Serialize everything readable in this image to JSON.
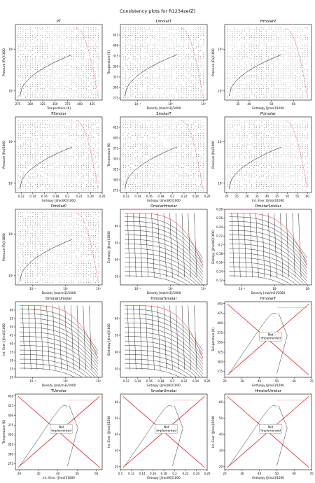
{
  "figure": {
    "title": "Consistency plots for R1234ze(Z)"
  },
  "colors": {
    "curve": "#000000",
    "red": "#e41a1c",
    "grid": "#bbbbbb"
  },
  "chart_data": [
    {
      "id": "PT",
      "title": "PT",
      "type": "scatter",
      "xlabel": "Temperature [K]",
      "ylabel": "Pressure [Pa]/1000",
      "xlim": [
        270,
        445
      ],
      "ylog": true,
      "ylim": [
        60,
        4000
      ],
      "xticks": [
        275,
        300,
        325,
        350,
        375,
        400,
        425
      ],
      "yticks": [
        100,
        1000
      ],
      "yticklabels": [
        "10²",
        "10³"
      ],
      "grid": "dots",
      "implemented": true
    },
    {
      "id": "DmolarT",
      "title": "DmolarT",
      "type": "scatter",
      "xlabel": "Density [mol/m3]/1000",
      "ylabel": "Temperature [K]",
      "xlog": true,
      "xlim": [
        0.03,
        13
      ],
      "ylim": [
        270,
        450
      ],
      "xticks": [
        0.1,
        1,
        10
      ],
      "xticklabels": [
        "10⁻¹",
        "10⁰",
        "10¹"
      ],
      "yticks": [
        275,
        300,
        325,
        350,
        375,
        400,
        425
      ],
      "grid": "dots",
      "implemented": true
    },
    {
      "id": "HmolarP",
      "title": "HmolarP",
      "type": "scatter",
      "xlabel": "Enthalpy [J/mol]/1000",
      "ylabel": "Pressure [Pa]/1000",
      "xlim": [
        29,
        68
      ],
      "ylog": true,
      "ylim": [
        60,
        4000
      ],
      "xticks": [
        35,
        40,
        50,
        60
      ],
      "yticks": [
        100,
        1000
      ],
      "yticklabels": [
        "10²",
        "10³"
      ],
      "grid": "dots",
      "implemented": true
    },
    {
      "id": "PSmolar",
      "title": "PSmolar",
      "type": "scatter",
      "xlabel": "Entropy [J/mol/K]/1000",
      "ylabel": "Pressure [Pa]/1000",
      "xlim": [
        0.11,
        0.26
      ],
      "ylog": true,
      "ylim": [
        60,
        4000
      ],
      "xticks": [
        0.12,
        0.14,
        0.16,
        0.18,
        0.2,
        0.22,
        0.24,
        0.26
      ],
      "yticks": [
        100,
        1000
      ],
      "yticklabels": [
        "10²",
        "10³"
      ],
      "grid": "dots",
      "implemented": true
    },
    {
      "id": "SmolarT",
      "title": "SmolarT",
      "type": "scatter",
      "xlabel": "Entropy [J/mol/K]/1000",
      "ylabel": "Temperature [K]",
      "xlim": [
        0.11,
        0.26
      ],
      "ylim": [
        270,
        450
      ],
      "xticks": [
        0.12,
        0.14,
        0.16,
        0.18,
        0.2,
        0.22,
        0.24,
        0.26
      ],
      "yticks": [
        275,
        300,
        325,
        350,
        375,
        400,
        425
      ],
      "grid": "dots",
      "implemented": true
    },
    {
      "id": "PUmolar",
      "title": "PUmolar",
      "type": "scatter",
      "xlabel": "Int. Ener. [J/mol]/1000",
      "ylabel": "Pressure [Pa]/1000",
      "xlim": [
        19,
        62
      ],
      "ylog": true,
      "ylim": [
        60,
        4000
      ],
      "xticks": [
        20,
        25,
        30,
        35,
        40,
        45,
        50,
        55,
        60
      ],
      "yticks": [
        100,
        1000
      ],
      "yticklabels": [
        "10²",
        "10³"
      ],
      "grid": "dots",
      "implemented": true
    },
    {
      "id": "DmolarP",
      "title": "DmolarP",
      "type": "scatter",
      "xlabel": "Density [mol/m3]/1000",
      "ylabel": "Pressure [Pa]/1000",
      "xlog": true,
      "xlim": [
        0.03,
        13
      ],
      "ylog": true,
      "ylim": [
        60,
        4000
      ],
      "xticks": [
        0.1,
        1,
        10
      ],
      "xticklabels": [
        "10⁻¹",
        "10⁰",
        "10¹"
      ],
      "yticks": [
        100,
        1000
      ],
      "yticklabels": [
        "10²",
        "10³"
      ],
      "grid": "dots",
      "implemented": true
    },
    {
      "id": "DmolarHmolar",
      "title": "DmolarHmolar",
      "type": "scatter",
      "xlabel": "Density [mol/m3]/1000",
      "ylabel": "Enthalpy [J/mol]/1000",
      "xlog": true,
      "xlim": [
        0.03,
        13
      ],
      "ylim": [
        25,
        70
      ],
      "xticks": [
        0.1,
        1,
        10
      ],
      "xticklabels": [
        "10⁻¹",
        "10⁰",
        "10¹"
      ],
      "yticks": [
        30,
        40,
        50,
        60
      ],
      "grid": "lines",
      "implemented": true
    },
    {
      "id": "DmolarSmolar",
      "title": "DmolarSmolar",
      "type": "scatter",
      "xlabel": "Density [mol/m3]/1000",
      "ylabel": "Entropy [J/mol/K]/1000",
      "xlog": true,
      "xlim": [
        0.03,
        13
      ],
      "ylim": [
        0.11,
        0.28
      ],
      "xticks": [
        0.1,
        1,
        10
      ],
      "xticklabels": [
        "10⁻¹",
        "10⁰",
        "10¹"
      ],
      "yticks": [
        0.12,
        0.14,
        0.16,
        0.18,
        0.2,
        0.22,
        0.24,
        0.26,
        0.28
      ],
      "grid": "lines",
      "implemented": true
    },
    {
      "id": "DmolarUmolar",
      "title": "DmolarUmolar",
      "type": "scatter",
      "xlabel": "Density [mol/m3]/1000",
      "ylabel": "Int. Ener. [J/mol]/1000",
      "xlog": true,
      "xlim": [
        0.03,
        13
      ],
      "ylim": [
        20,
        65
      ],
      "xticks": [
        0.1,
        1,
        10
      ],
      "xticklabels": [
        "10⁻¹",
        "10⁰",
        "10¹"
      ],
      "yticks": [
        20,
        25,
        30,
        35,
        40,
        45,
        50,
        55,
        60
      ],
      "grid": "lines",
      "implemented": true
    },
    {
      "id": "HmolarSmolar",
      "title": "HmolarSmolar",
      "type": "scatter",
      "xlabel": "Entropy [J/mol/K]/1000",
      "ylabel": "Enthalpy [J/mol]/1000",
      "xlim": [
        0.11,
        0.26
      ],
      "ylim": [
        25,
        70
      ],
      "xticks": [
        0.12,
        0.14,
        0.16,
        0.18,
        0.2,
        0.22,
        0.24,
        0.26
      ],
      "yticks": [
        30,
        40,
        50,
        60
      ],
      "grid": "lines",
      "implemented": true
    },
    {
      "id": "HmolarT",
      "title": "HmolarT",
      "type": "line",
      "xlabel": "Enthalpy [J/mol]/1000",
      "ylabel": "Temperature [K]",
      "xlim": [
        20,
        70
      ],
      "ylim": [
        260,
        455
      ],
      "xticks": [
        20,
        30,
        40,
        50,
        60,
        70
      ],
      "yticks": [
        275,
        300,
        325,
        350,
        375,
        400,
        425,
        450
      ],
      "implemented": false,
      "note": "Not\nImplemented"
    },
    {
      "id": "TUmolar",
      "title": "TUmolar",
      "type": "line",
      "xlabel": "Int. Ener. [J/mol]/1000",
      "ylabel": "Temperature [K]",
      "xlim": [
        18,
        63
      ],
      "ylim": [
        260,
        455
      ],
      "xticks": [
        20,
        30,
        40,
        50,
        60
      ],
      "yticks": [
        275,
        300,
        325,
        350,
        375,
        400,
        425,
        450
      ],
      "implemented": false,
      "note": "Not\nImplemented"
    },
    {
      "id": "SmolarUmolar",
      "title": "SmolarUmolar",
      "type": "line",
      "xlabel": "Entropy [J/mol/K]/1000",
      "ylabel": "Int. Ener. [J/mol]/1000",
      "xlim": [
        0.1,
        0.26
      ],
      "ylim": [
        18,
        65
      ],
      "xticks": [
        0.1,
        0.12,
        0.14,
        0.16,
        0.18,
        0.2,
        0.22,
        0.24,
        0.26
      ],
      "yticks": [
        20,
        30,
        40,
        50,
        60
      ],
      "implemented": false,
      "note": "Not\nImplemented"
    },
    {
      "id": "HmolarUmolar",
      "title": "HmolarUmolar",
      "type": "line",
      "xlabel": "Enthalpy [J/mol]/1000",
      "ylabel": "Int. Ener. [J/mol]/1000",
      "xlim": [
        20,
        70
      ],
      "ylim": [
        18,
        65
      ],
      "xticks": [
        20,
        30,
        40,
        50,
        60,
        70
      ],
      "yticks": [
        20,
        30,
        40,
        50,
        60
      ],
      "implemented": false,
      "note": "Not\nImplemented"
    }
  ]
}
